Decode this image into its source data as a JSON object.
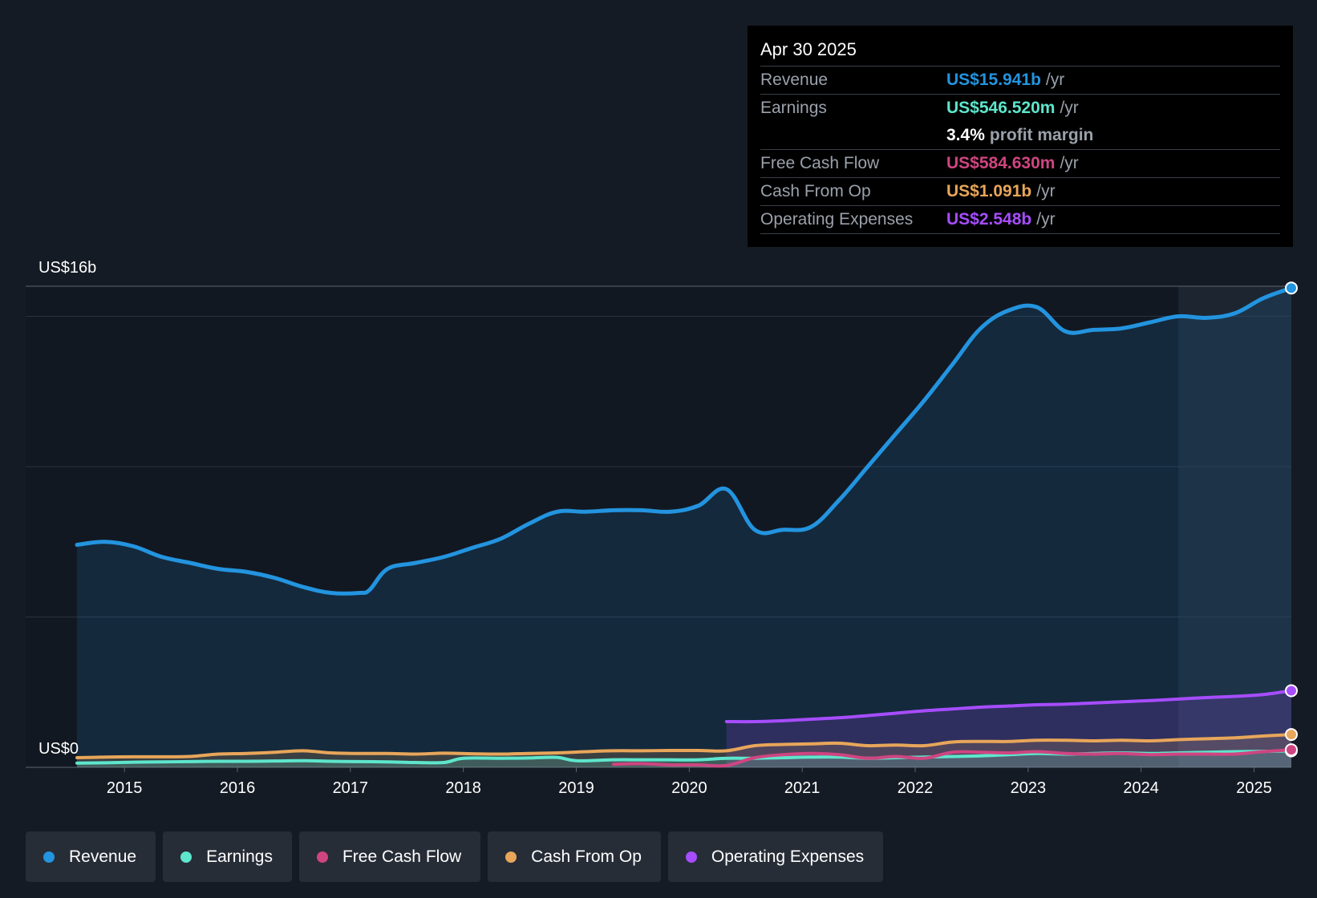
{
  "chart_data": {
    "type": "area",
    "title": "",
    "y_max_label": "US$16b",
    "y_min_label": "US$0",
    "ylim": [
      0,
      16
    ],
    "xlim": [
      2014.58,
      2025.33
    ],
    "x_ticks": [
      "2015",
      "2016",
      "2017",
      "2018",
      "2019",
      "2020",
      "2021",
      "2022",
      "2023",
      "2024",
      "2025"
    ],
    "series": [
      {
        "name": "Revenue",
        "color": "#2394df",
        "fill": true,
        "x": [
          2014.58,
          2014.83,
          2015.08,
          2015.33,
          2015.58,
          2015.83,
          2016.08,
          2016.33,
          2016.58,
          2016.83,
          2017.08,
          2017.17,
          2017.33,
          2017.58,
          2017.83,
          2018.08,
          2018.33,
          2018.58,
          2018.83,
          2019.08,
          2019.33,
          2019.58,
          2019.83,
          2020.08,
          2020.33,
          2020.58,
          2020.83,
          2021.08,
          2021.33,
          2021.58,
          2021.83,
          2022.08,
          2022.33,
          2022.58,
          2022.83,
          2023.08,
          2023.33,
          2023.58,
          2023.83,
          2024.08,
          2024.33,
          2024.58,
          2024.83,
          2025.08,
          2025.33
        ],
        "values": [
          7.4,
          7.5,
          7.35,
          7.0,
          6.8,
          6.6,
          6.5,
          6.3,
          6.0,
          5.8,
          5.8,
          5.9,
          6.6,
          6.8,
          7.0,
          7.3,
          7.6,
          8.1,
          8.5,
          8.5,
          8.55,
          8.55,
          8.5,
          8.7,
          9.25,
          7.9,
          7.9,
          8.0,
          8.9,
          10.0,
          11.1,
          12.2,
          13.4,
          14.6,
          15.2,
          15.3,
          14.5,
          14.55,
          14.6,
          14.8,
          15.0,
          14.95,
          15.1,
          15.6,
          15.941
        ]
      },
      {
        "name": "Operating Expenses",
        "color": "#a64dff",
        "fill": true,
        "x": [
          2020.33,
          2020.58,
          2020.83,
          2021.08,
          2021.33,
          2021.58,
          2021.83,
          2022.08,
          2022.33,
          2022.58,
          2022.83,
          2023.08,
          2023.33,
          2023.58,
          2023.83,
          2024.08,
          2024.33,
          2024.58,
          2024.83,
          2025.08,
          2025.33
        ],
        "values": [
          1.52,
          1.52,
          1.55,
          1.6,
          1.65,
          1.72,
          1.8,
          1.88,
          1.94,
          2.0,
          2.04,
          2.08,
          2.1,
          2.14,
          2.18,
          2.22,
          2.27,
          2.32,
          2.36,
          2.42,
          2.548
        ]
      },
      {
        "name": "Cash From Op",
        "color": "#e8a65a",
        "fill": true,
        "x": [
          2014.58,
          2014.83,
          2015.08,
          2015.33,
          2015.58,
          2015.83,
          2016.08,
          2016.33,
          2016.58,
          2016.83,
          2017.08,
          2017.33,
          2017.58,
          2017.83,
          2018.08,
          2018.33,
          2018.58,
          2018.83,
          2019.08,
          2019.33,
          2019.58,
          2019.83,
          2020.08,
          2020.33,
          2020.58,
          2020.83,
          2021.08,
          2021.33,
          2021.58,
          2021.83,
          2022.08,
          2022.33,
          2022.58,
          2022.83,
          2023.08,
          2023.33,
          2023.58,
          2023.83,
          2024.08,
          2024.33,
          2024.58,
          2024.83,
          2025.08,
          2025.33
        ],
        "values": [
          0.32,
          0.34,
          0.35,
          0.35,
          0.36,
          0.44,
          0.46,
          0.5,
          0.55,
          0.48,
          0.46,
          0.46,
          0.44,
          0.47,
          0.45,
          0.44,
          0.46,
          0.48,
          0.52,
          0.55,
          0.55,
          0.56,
          0.56,
          0.55,
          0.72,
          0.76,
          0.78,
          0.8,
          0.72,
          0.74,
          0.72,
          0.84,
          0.86,
          0.86,
          0.9,
          0.9,
          0.88,
          0.9,
          0.88,
          0.92,
          0.95,
          0.98,
          1.04,
          1.091
        ]
      },
      {
        "name": "Earnings",
        "color": "#5ee6cc",
        "fill": true,
        "x": [
          2014.58,
          2014.83,
          2015.08,
          2015.33,
          2015.58,
          2015.83,
          2016.08,
          2016.33,
          2016.58,
          2016.83,
          2017.08,
          2017.33,
          2017.58,
          2017.83,
          2018.0,
          2018.33,
          2018.58,
          2018.83,
          2019.0,
          2019.33,
          2019.58,
          2019.83,
          2020.08,
          2020.33,
          2020.58,
          2020.83,
          2021.08,
          2021.33,
          2021.58,
          2021.83,
          2022.08,
          2022.33,
          2022.58,
          2022.83,
          2023.08,
          2023.33,
          2023.58,
          2023.83,
          2024.08,
          2024.33,
          2024.58,
          2024.83,
          2025.08,
          2025.33
        ],
        "values": [
          0.14,
          0.15,
          0.17,
          0.18,
          0.19,
          0.2,
          0.2,
          0.21,
          0.22,
          0.2,
          0.19,
          0.18,
          0.16,
          0.16,
          0.3,
          0.3,
          0.31,
          0.33,
          0.22,
          0.25,
          0.25,
          0.25,
          0.25,
          0.3,
          0.3,
          0.32,
          0.34,
          0.34,
          0.3,
          0.32,
          0.34,
          0.36,
          0.38,
          0.42,
          0.46,
          0.44,
          0.46,
          0.48,
          0.46,
          0.48,
          0.5,
          0.52,
          0.53,
          0.5465
        ]
      },
      {
        "name": "Free Cash Flow",
        "color": "#cf4581",
        "fill": false,
        "x": [
          2019.33,
          2019.58,
          2019.83,
          2020.08,
          2020.33,
          2020.58,
          2020.83,
          2021.08,
          2021.33,
          2021.58,
          2021.83,
          2022.08,
          2022.33,
          2022.58,
          2022.83,
          2023.08,
          2023.33,
          2023.58,
          2023.83,
          2024.08,
          2024.33,
          2024.58,
          2024.83,
          2025.08,
          2025.33
        ],
        "values": [
          0.1,
          0.12,
          0.08,
          0.08,
          0.06,
          0.32,
          0.42,
          0.46,
          0.42,
          0.3,
          0.36,
          0.3,
          0.5,
          0.5,
          0.48,
          0.52,
          0.46,
          0.44,
          0.46,
          0.42,
          0.44,
          0.44,
          0.44,
          0.52,
          0.5846
        ]
      }
    ],
    "highlight_from": 2024.33
  },
  "tooltip": {
    "date": "Apr 30 2025",
    "rows": {
      "revenue": {
        "label": "Revenue",
        "value": "US$15.941b",
        "unit": "/yr",
        "color": "#2394df"
      },
      "earnings": {
        "label": "Earnings",
        "value": "US$546.520m",
        "unit": "/yr",
        "color": "#5ee6cc"
      },
      "margin": {
        "pct": "3.4%",
        "text": "profit margin"
      },
      "fcf": {
        "label": "Free Cash Flow",
        "value": "US$584.630m",
        "unit": "/yr",
        "color": "#cf4581"
      },
      "cfo": {
        "label": "Cash From Op",
        "value": "US$1.091b",
        "unit": "/yr",
        "color": "#e8a65a"
      },
      "opex": {
        "label": "Operating Expenses",
        "value": "US$2.548b",
        "unit": "/yr",
        "color": "#a64dff"
      }
    }
  },
  "legend": [
    {
      "label": "Revenue",
      "color": "#2394df"
    },
    {
      "label": "Earnings",
      "color": "#5ee6cc"
    },
    {
      "label": "Free Cash Flow",
      "color": "#cf4581"
    },
    {
      "label": "Cash From Op",
      "color": "#e8a65a"
    },
    {
      "label": "Operating Expenses",
      "color": "#a64dff"
    }
  ]
}
